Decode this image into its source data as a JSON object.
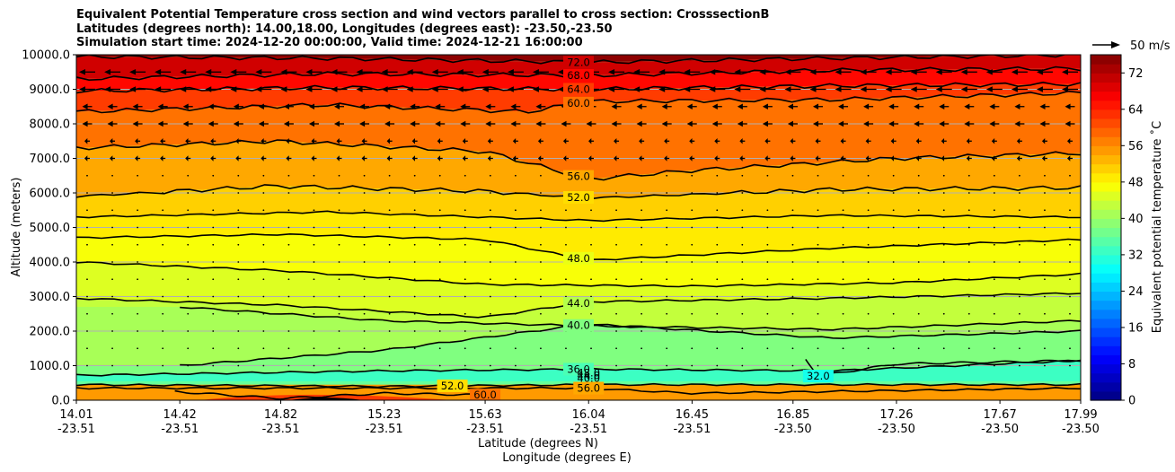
{
  "chart_data": {
    "type": "heatmap",
    "subtype": "filled contour cross-section with contour lines and wind vectors",
    "title": [
      "Equivalent Potential Temperature cross section and wind vectors parallel to cross section: CrosssectionB",
      "Latitudes (degrees north): 14.00,18.00, Longitudes (degrees east): -23.50,-23.50",
      "Simulation start time: 2024-12-20 00:00:00, Valid time: 2024-12-21 16:00:00"
    ],
    "xlabel": "Latitude (degrees N)",
    "xlabel2": "Longitude (degrees E)",
    "ylabel": "Altitude (meters)",
    "ylim": [
      0,
      10000
    ],
    "yticks": [
      "0.0",
      "1000.0",
      "2000.0",
      "3000.0",
      "4000.0",
      "5000.0",
      "6000.0",
      "7000.0",
      "8000.0",
      "9000.0",
      "10000.0"
    ],
    "xticks": [
      {
        "lat": "14.01",
        "lon": "-23.51"
      },
      {
        "lat": "14.42",
        "lon": "-23.51"
      },
      {
        "lat": "14.82",
        "lon": "-23.51"
      },
      {
        "lat": "15.23",
        "lon": "-23.51"
      },
      {
        "lat": "15.63",
        "lon": "-23.51"
      },
      {
        "lat": "16.04",
        "lon": "-23.51"
      },
      {
        "lat": "16.45",
        "lon": "-23.51"
      },
      {
        "lat": "16.85",
        "lon": "-23.50"
      },
      {
        "lat": "17.26",
        "lon": "-23.50"
      },
      {
        "lat": "17.67",
        "lon": "-23.50"
      },
      {
        "lat": "17.99",
        "lon": "-23.50"
      }
    ],
    "grid": "horizontal",
    "colorbar": {
      "label": "Equivalent potential temperature ˚C",
      "range": [
        0,
        76
      ],
      "ticks": [
        "0",
        "8",
        "16",
        "24",
        "32",
        "40",
        "48",
        "56",
        "64",
        "72"
      ],
      "colormap": "jet"
    },
    "wind_key": {
      "label": "50 m/s"
    },
    "contours": [
      {
        "level": 72,
        "label": "72.0",
        "altitude_at_x": [
          [
            14.01,
            9950
          ],
          [
            15.0,
            9900
          ],
          [
            16.04,
            9780
          ],
          [
            17.0,
            9900
          ],
          [
            17.99,
            10000
          ]
        ]
      },
      {
        "level": 68,
        "label": "68.0",
        "altitude_at_x": [
          [
            14.01,
            9300
          ],
          [
            15.0,
            9450
          ],
          [
            16.04,
            9400
          ],
          [
            17.0,
            9550
          ],
          [
            17.99,
            9600
          ]
        ]
      },
      {
        "level": 64,
        "label": "64.0",
        "altitude_at_x": [
          [
            14.01,
            8950
          ],
          [
            15.0,
            9050
          ],
          [
            16.04,
            9000
          ],
          [
            17.0,
            9100
          ],
          [
            17.99,
            9150
          ]
        ]
      },
      {
        "level": 60,
        "label": "60.0",
        "altitude_at_x": [
          [
            14.01,
            8350
          ],
          [
            15.0,
            8550
          ],
          [
            15.8,
            8350
          ],
          [
            16.04,
            8650
          ],
          [
            17.0,
            8700
          ],
          [
            17.99,
            8900
          ]
        ]
      },
      {
        "level": 56,
        "label": "56.0",
        "altitude_at_x": [
          [
            14.01,
            7300
          ],
          [
            14.8,
            7500
          ],
          [
            15.63,
            7200
          ],
          [
            16.04,
            6400
          ],
          [
            16.45,
            6650
          ],
          [
            17.26,
            7000
          ],
          [
            17.99,
            7150
          ]
        ]
      },
      {
        "level": 52,
        "label": "52.0",
        "altitude_at_x": [
          [
            14.01,
            5900
          ],
          [
            14.8,
            6200
          ],
          [
            15.63,
            6050
          ],
          [
            16.04,
            5850
          ],
          [
            17.0,
            6100
          ],
          [
            17.99,
            6150
          ]
        ]
      },
      {
        "level": 50,
        "label": "",
        "altitude_at_x": [
          [
            14.01,
            5300
          ],
          [
            15.0,
            5450
          ],
          [
            16.04,
            5200
          ],
          [
            17.0,
            5350
          ],
          [
            17.99,
            5300
          ]
        ]
      },
      {
        "level": 48,
        "label": "48.0",
        "altitude_at_x": [
          [
            14.01,
            4700
          ],
          [
            14.82,
            4800
          ],
          [
            15.63,
            4650
          ],
          [
            16.04,
            4050
          ],
          [
            17.0,
            4400
          ],
          [
            17.99,
            4650
          ]
        ]
      },
      {
        "level": 46,
        "label": "",
        "altitude_at_x": [
          [
            14.01,
            4000
          ],
          [
            14.82,
            3750
          ],
          [
            15.63,
            3350
          ],
          [
            16.45,
            3300
          ],
          [
            17.26,
            3400
          ],
          [
            17.99,
            3650
          ]
        ]
      },
      {
        "level": 44,
        "label": "44.0",
        "altitude_at_x": [
          [
            14.01,
            2950
          ],
          [
            14.82,
            2750
          ],
          [
            15.63,
            2400
          ],
          [
            16.04,
            2850
          ],
          [
            17.0,
            2950
          ],
          [
            17.99,
            3100
          ]
        ]
      },
      {
        "level": 42,
        "label": "",
        "altitude_at_x": [
          [
            14.42,
            2700
          ],
          [
            15.23,
            2300
          ],
          [
            16.04,
            2150
          ],
          [
            17.0,
            2050
          ],
          [
            17.99,
            2300
          ]
        ]
      },
      {
        "level": 40,
        "label": "40.0",
        "altitude_at_x": [
          [
            14.42,
            1000
          ],
          [
            15.23,
            1450
          ],
          [
            16.04,
            2200
          ],
          [
            17.0,
            1800
          ],
          [
            17.99,
            2000
          ]
        ]
      },
      {
        "level": 36,
        "label": "36.0",
        "altitude_at_x": [
          [
            14.01,
            720
          ],
          [
            15.23,
            850
          ],
          [
            16.04,
            900
          ],
          [
            17.0,
            850
          ],
          [
            17.99,
            1150
          ]
        ]
      },
      {
        "level": 32,
        "label": "32.0",
        "altitude_at_x": [
          [
            16.9,
            1200
          ],
          [
            16.95,
            700
          ],
          [
            17.26,
            1050
          ],
          [
            17.99,
            1150
          ]
        ]
      },
      {
        "level": 52,
        "label": "52.0",
        "altitude_at_x": [
          [
            14.01,
            450
          ],
          [
            15.23,
            400
          ],
          [
            16.04,
            450
          ],
          [
            17.99,
            450
          ]
        ]
      },
      {
        "level": 56,
        "label": "56.0",
        "altitude_at_x": [
          [
            14.01,
            350
          ],
          [
            16.04,
            350
          ],
          [
            16.45,
            200
          ],
          [
            17.99,
            350
          ]
        ]
      },
      {
        "level": 60,
        "label": "60.0",
        "altitude_at_x": [
          [
            14.4,
            250
          ],
          [
            14.82,
            50
          ],
          [
            15.23,
            200
          ],
          [
            15.63,
            150
          ]
        ]
      }
    ],
    "low_level_labels": [
      "48.0",
      "44.0",
      "40.0"
    ],
    "wind_vectors": "horizontal arrows parallel to cross section; strong westward flow (pointing left) above ~7000 m, weak elsewhere"
  }
}
